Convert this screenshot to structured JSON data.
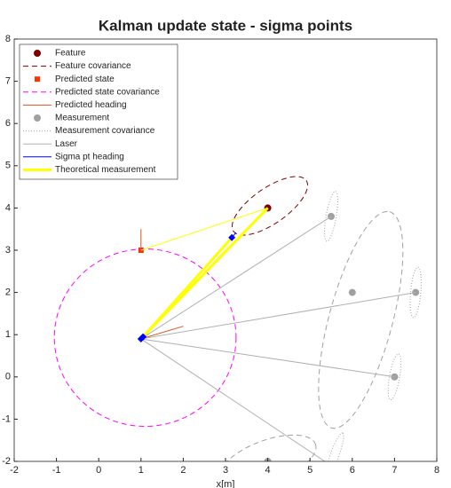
{
  "chart_data": {
    "type": "plot",
    "title": "Kalman update state - sigma points",
    "xlabel": "x[m]",
    "xlim": [
      -2,
      8
    ],
    "ylim": [
      -2,
      8
    ],
    "xticks": [
      -2,
      -1,
      0,
      1,
      2,
      3,
      4,
      5,
      6,
      7,
      8
    ],
    "yticks": [
      -2,
      -1,
      0,
      1,
      2,
      3,
      4,
      5,
      6,
      7,
      8
    ],
    "legend": "top-left",
    "series": [
      {
        "name": "Feature",
        "kind": "marker",
        "marker": "circle",
        "color": "#7f0000",
        "x": [
          4
        ],
        "y": [
          4
        ]
      },
      {
        "name": "Feature covariance",
        "kind": "ellipse",
        "style": "dashed",
        "color": "#7f0000",
        "ellipses": [
          {
            "cx": 4.05,
            "cy": 4.05,
            "rx": 1.05,
            "ry": 0.42,
            "angle": 35
          }
        ]
      },
      {
        "name": "Predicted state",
        "kind": "marker",
        "marker": "square",
        "color": "#ff3300",
        "x": [
          1
        ],
        "y": [
          3
        ]
      },
      {
        "name": "Predicted state covariance",
        "kind": "ellipse",
        "style": "dashed",
        "color": "#ff00ff",
        "ellipses": [
          {
            "cx": 1.1,
            "cy": 0.93,
            "rx": 2.15,
            "ry": 2.1,
            "angle": 0
          }
        ]
      },
      {
        "name": "Predicted heading",
        "kind": "line",
        "style": "solid",
        "color": "#d95319",
        "width": 1,
        "segments": [
          {
            "x": [
              1,
              2
            ],
            "y": [
              0.9,
              1.2
            ]
          },
          {
            "x": [
              1,
              1
            ],
            "y": [
              3,
              3.5
            ]
          }
        ]
      },
      {
        "name": "Measurement",
        "kind": "marker",
        "marker": "circle",
        "color": "#a0a0a0",
        "x": [
          5.5,
          6,
          7.5,
          7,
          4
        ],
        "y": [
          3.8,
          2,
          2,
          0,
          -2
        ]
      },
      {
        "name": "Measurement covariance",
        "kind": "ellipse",
        "style": "dotted",
        "color": "#a0a0a0",
        "ellipses": [
          {
            "cx": 5.5,
            "cy": 3.8,
            "rx": 0.6,
            "ry": 0.12,
            "angle": 80
          },
          {
            "cx": 7.5,
            "cy": 2,
            "rx": 0.6,
            "ry": 0.12,
            "angle": 85
          },
          {
            "cx": 7,
            "cy": 0,
            "rx": 0.55,
            "ry": 0.12,
            "angle": 80
          },
          {
            "cx": 5.6,
            "cy": -1.8,
            "rx": 0.5,
            "ry": 0.1,
            "angle": 70
          }
        ]
      },
      {
        "kind": "ellipse",
        "style": "dashed",
        "color": "#a0a0a0",
        "ellipses": [
          {
            "cx": 6.2,
            "cy": 1.35,
            "rx": 2.65,
            "ry": 0.75,
            "angle": 75
          },
          {
            "cx": 4,
            "cy": -2,
            "rx": 1.2,
            "ry": 0.5,
            "angle": 20
          }
        ]
      },
      {
        "name": "Laser",
        "kind": "line",
        "style": "solid",
        "color": "#b0b0b0",
        "width": 1,
        "segments": [
          {
            "x": [
              1,
              5.5
            ],
            "y": [
              0.9,
              3.8
            ]
          },
          {
            "x": [
              1,
              7.5
            ],
            "y": [
              0.9,
              2
            ]
          },
          {
            "x": [
              1,
              7
            ],
            "y": [
              0.9,
              0
            ]
          },
          {
            "x": [
              1,
              5.35
            ],
            "y": [
              0.9,
              -2
            ]
          }
        ]
      },
      {
        "name": "Sigma pt heading",
        "kind": "line",
        "style": "solid",
        "color": "#0000ff",
        "width": 1,
        "segments": [
          {
            "x": [
              1,
              1.12
            ],
            "y": [
              0.9,
              0.96
            ]
          },
          {
            "x": [
              3.15,
              3.25
            ],
            "y": [
              3.3,
              3.42
            ]
          }
        ]
      },
      {
        "name": "Theoretical measurement",
        "kind": "line",
        "style": "solid",
        "color": "#ffff00",
        "width": 3,
        "segments": [
          {
            "x": [
              1,
              4
            ],
            "y": [
              0.9,
              4
            ]
          },
          {
            "x": [
              1.05,
              3.15
            ],
            "y": [
              0.95,
              3.3
            ]
          }
        ]
      },
      {
        "kind": "line",
        "style": "solid",
        "color": "#ffff00",
        "width": 1,
        "segments": [
          {
            "x": [
              1,
              4
            ],
            "y": [
              3,
              4
            ]
          },
          {
            "x": [
              1.1,
              4
            ],
            "y": [
              1,
              4
            ]
          }
        ]
      },
      {
        "kind": "marker",
        "marker": "diamond",
        "color": "#0000ff",
        "x": [
          1,
          3.15,
          1.05
        ],
        "y": [
          0.9,
          3.3,
          0.95
        ]
      }
    ]
  }
}
